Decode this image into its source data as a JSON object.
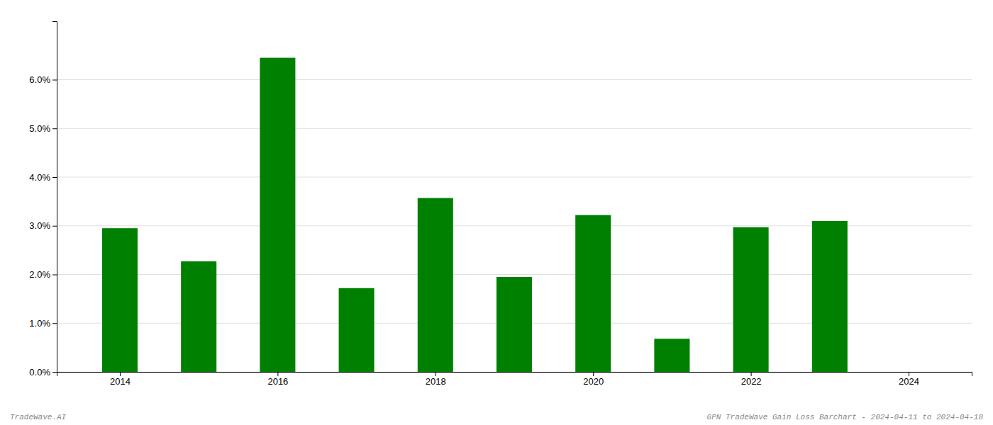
{
  "chart_data": {
    "type": "bar",
    "x": [
      2014,
      2015,
      2016,
      2017,
      2018,
      2019,
      2020,
      2021,
      2022,
      2023
    ],
    "values": [
      0.0295,
      0.0227,
      0.0645,
      0.0172,
      0.0357,
      0.0195,
      0.0322,
      0.0068,
      0.0297,
      0.031
    ],
    "color": "#008000",
    "xlim": [
      2013.2,
      2024.8
    ],
    "xticks": [
      2014,
      2016,
      2018,
      2020,
      2022,
      2024
    ],
    "ylim": [
      0.0,
      0.072
    ],
    "yticks": [
      {
        "value": 0.0,
        "label": "0.0%"
      },
      {
        "value": 0.01,
        "label": "1.0%"
      },
      {
        "value": 0.02,
        "label": "2.0%"
      },
      {
        "value": 0.03,
        "label": "3.0%"
      },
      {
        "value": 0.04,
        "label": "4.0%"
      },
      {
        "value": 0.05,
        "label": "5.0%"
      },
      {
        "value": 0.06,
        "label": "6.0%"
      }
    ],
    "grid": true,
    "annotations": [
      "TradeWave.AI",
      "GPN TradeWave Gain Loss Barchart - 2024-04-11 to 2024-04-18"
    ]
  }
}
